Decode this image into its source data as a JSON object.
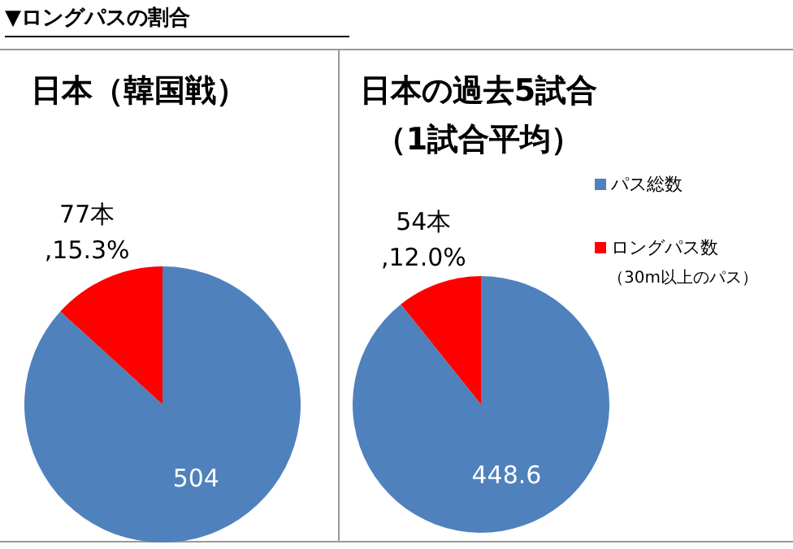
{
  "chart_data": [
    {
      "type": "pie",
      "title": "日本（韓国戦）",
      "annotations": [
        "▼ロングパスの割合"
      ],
      "categories": [
        null,
        null
      ],
      "values": [
        504,
        77
      ],
      "colors": [
        "#4f81bd",
        "#ff0000"
      ],
      "value_labels": [
        "504",
        "77本\n,15.3%"
      ]
    },
    {
      "type": "pie",
      "title": "日本の過去5試合（1試合平均）",
      "annotations": [
        "（30m以上のパス）"
      ],
      "categories": [
        "パス総数",
        "ロングパス数"
      ],
      "values": [
        448.6,
        54
      ],
      "colors": [
        "#4f81bd",
        "#ff0000"
      ],
      "value_labels": [
        "448.6",
        "54本\n,12.0%"
      ],
      "legend": "right"
    }
  ]
}
